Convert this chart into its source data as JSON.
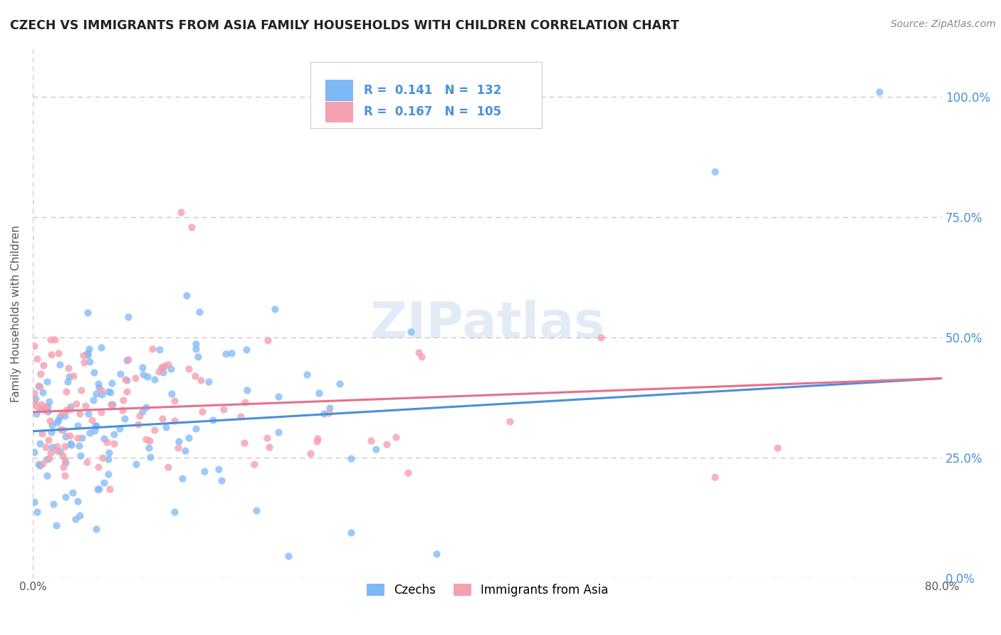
{
  "title": "CZECH VS IMMIGRANTS FROM ASIA FAMILY HOUSEHOLDS WITH CHILDREN CORRELATION CHART",
  "source": "Source: ZipAtlas.com",
  "ylabel": "Family Households with Children",
  "xlim": [
    0.0,
    0.8
  ],
  "ylim": [
    0.0,
    1.1
  ],
  "ytick_values": [
    0.0,
    0.25,
    0.5,
    0.75,
    1.0
  ],
  "ytick_labels_right": [
    "0.0%",
    "25.0%",
    "50.0%",
    "75.0%",
    "100.0%"
  ],
  "xtick_values": [
    0.0,
    0.8
  ],
  "xtick_labels": [
    "0.0%",
    "80.0%"
  ],
  "czech_color": "#7eb8f7",
  "asia_color": "#f4a0b0",
  "czech_line_color": "#4a90d9",
  "asia_line_color": "#e8708a",
  "czech_R": 0.141,
  "czech_N": 132,
  "asia_R": 0.167,
  "asia_N": 105,
  "watermark": "ZIPatlas",
  "background_color": "#ffffff",
  "grid_color": "#c8c8c8",
  "legend_label_czech": "Czechs",
  "legend_label_asia": "Immigrants from Asia",
  "right_tick_color": "#4a90d9",
  "title_color": "#222222",
  "source_color": "#888888",
  "ylabel_color": "#555555"
}
